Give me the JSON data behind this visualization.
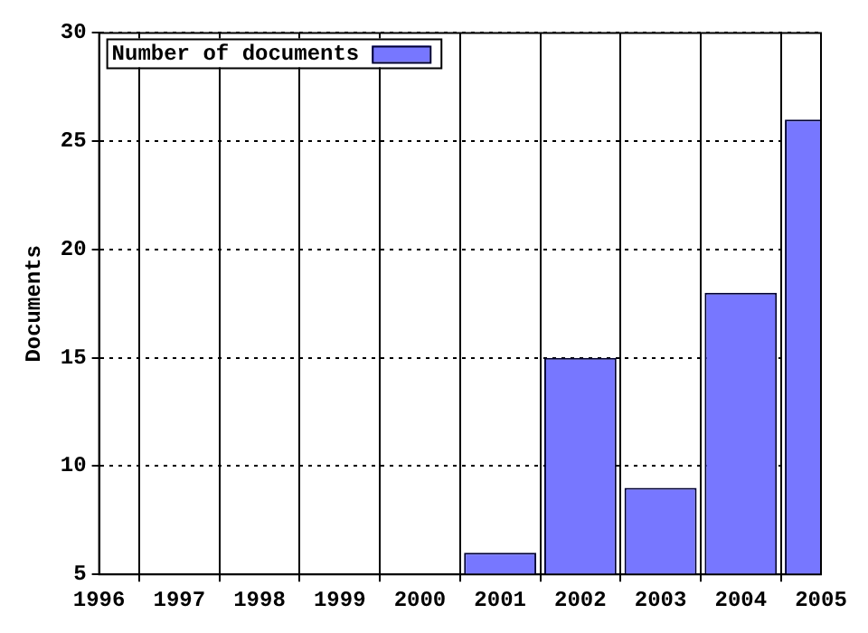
{
  "chart_data": {
    "type": "bar",
    "ylabel": "Documents",
    "x": [
      2001,
      2002,
      2003,
      2004,
      2005
    ],
    "series": [
      {
        "name": "Number of documents",
        "color": "#7777ff",
        "values": [
          6,
          15,
          9,
          18,
          26
        ]
      }
    ],
    "xlim": [
      1996,
      2005
    ],
    "xticks": [
      1996,
      1997,
      1998,
      1999,
      2000,
      2001,
      2002,
      2003,
      2004,
      2005
    ],
    "ylim": [
      5,
      30
    ],
    "yticks": [
      5,
      10,
      15,
      20,
      25,
      30
    ],
    "grid": true,
    "legend": "top left"
  }
}
